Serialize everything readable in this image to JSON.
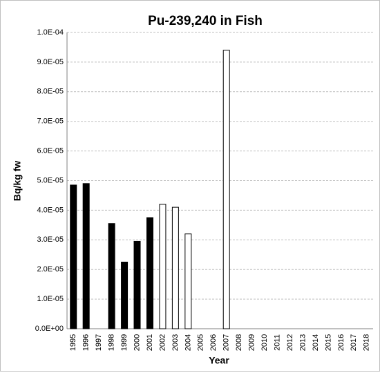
{
  "chart_data": {
    "type": "bar",
    "title": "Pu-239,240 in Fish",
    "x_label": "Year",
    "y_label": "Bq/kg fw",
    "categories": [
      "1995",
      "1996",
      "1997",
      "1998",
      "1999",
      "2000",
      "2001",
      "2002",
      "2003",
      "2004",
      "2005",
      "2006",
      "2007",
      "2008",
      "2009",
      "2010",
      "2011",
      "2012",
      "2013",
      "2014",
      "2015",
      "2016",
      "2017",
      "2018"
    ],
    "values": [
      4.85e-05,
      4.9e-05,
      null,
      3.55e-05,
      2.25e-05,
      2.95e-05,
      3.75e-05,
      4.2e-05,
      4.1e-05,
      3.2e-05,
      null,
      null,
      9.4e-05,
      null,
      null,
      null,
      null,
      null,
      null,
      null,
      null,
      null,
      null,
      null
    ],
    "colors": [
      "#000000",
      "#000000",
      null,
      "#000000",
      "#000000",
      "#000000",
      "#000000",
      "#ffffff",
      "#ffffff",
      "#ffffff",
      null,
      null,
      "#ffffff",
      null,
      null,
      null,
      null,
      null,
      null,
      null,
      null,
      null,
      null,
      null
    ],
    "ylim": [
      0,
      0.0001
    ],
    "yticks": [
      {
        "value": 0,
        "label": "0.0E+00"
      },
      {
        "value": 1e-05,
        "label": "1.0E-05"
      },
      {
        "value": 2e-05,
        "label": "2.0E-05"
      },
      {
        "value": 3e-05,
        "label": "3.0E-05"
      },
      {
        "value": 4e-05,
        "label": "4.0E-05"
      },
      {
        "value": 5e-05,
        "label": "5.0E-05"
      },
      {
        "value": 6e-05,
        "label": "6.0E-05"
      },
      {
        "value": 7e-05,
        "label": "7.0E-05"
      },
      {
        "value": 8e-05,
        "label": "8.0E-05"
      },
      {
        "value": 9e-05,
        "label": "9.0E-05"
      },
      {
        "value": 0.0001,
        "label": "1.0E-04"
      }
    ],
    "grid": true
  }
}
